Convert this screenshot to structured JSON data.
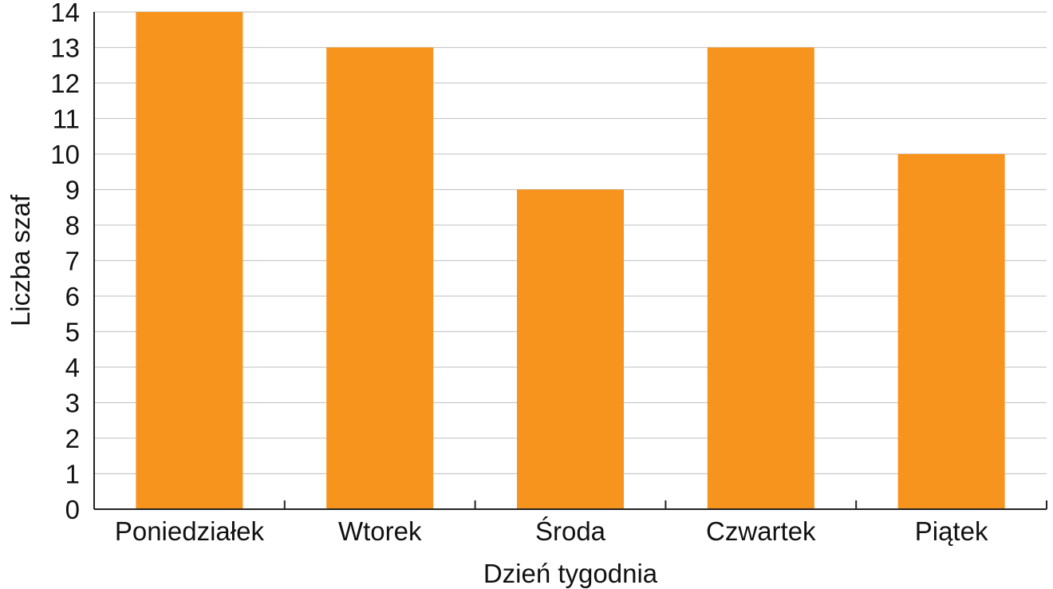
{
  "chart_data": {
    "type": "bar",
    "categories": [
      "Poniedziałek",
      "Wtorek",
      "Środa",
      "Czwartek",
      "Piątek"
    ],
    "values": [
      14,
      13,
      9,
      13,
      10
    ],
    "xlabel": "Dzień tygodnia",
    "ylabel": "Liczba szaf",
    "ylim": [
      0,
      14
    ],
    "yticks": [
      0,
      1,
      2,
      3,
      4,
      5,
      6,
      7,
      8,
      9,
      10,
      11,
      12,
      13,
      14
    ],
    "grid": true,
    "bar_color": "#F7941D",
    "grid_color": "#c9c9c9",
    "axis_color": "#222222"
  }
}
